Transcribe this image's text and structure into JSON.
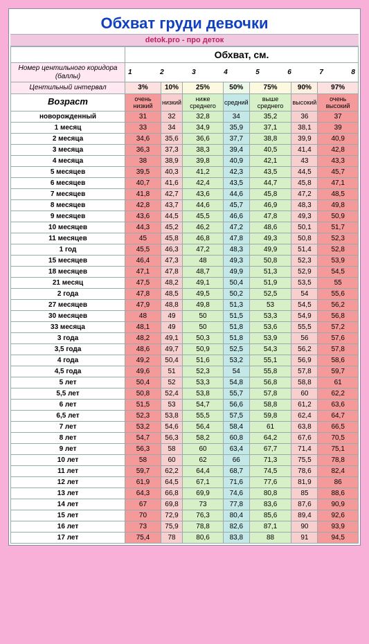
{
  "title": "Обхват груди девочки",
  "subtitle": "detok.pro - про деток",
  "main_header": "Обхват, см.",
  "corridor_label": "Номер центильного коридора (баллы)",
  "corridors": [
    "1",
    "2",
    "3",
    "4",
    "5",
    "6",
    "7",
    "8"
  ],
  "interval_label": "Центильный интервал",
  "percents": [
    "3%",
    "10%",
    "25%",
    "50%",
    "75%",
    "90%",
    "97%"
  ],
  "age_label": "Возраст",
  "categories": [
    "очень низкий",
    "низкий",
    "ниже среднего",
    "средний",
    "выше среднего",
    "высокий",
    "очень высокий"
  ],
  "colors": {
    "page_bg": "#f8b0d8",
    "col1": "#f49a9a",
    "col2": "#f8cfcf",
    "col3": "#d8f0c8",
    "col4": "#c4e8e8",
    "col5": "#d8f0c8",
    "col6": "#f8cfcf",
    "col7": "#f49a9a"
  },
  "rows": [
    {
      "age": "новорожденный",
      "v": [
        "31",
        "32",
        "32,8",
        "34",
        "35,2",
        "36",
        "37"
      ]
    },
    {
      "age": "1 месяц",
      "v": [
        "33",
        "34",
        "34,9",
        "35,9",
        "37,1",
        "38,1",
        "39"
      ]
    },
    {
      "age": "2 месяца",
      "v": [
        "34,6",
        "35,6",
        "36,6",
        "37,7",
        "38,8",
        "39,9",
        "40,9"
      ]
    },
    {
      "age": "3 месяца",
      "v": [
        "36,3",
        "37,3",
        "38,3",
        "39,4",
        "40,5",
        "41,4",
        "42,8"
      ]
    },
    {
      "age": "4 месяца",
      "v": [
        "38",
        "38,9",
        "39,8",
        "40,9",
        "42,1",
        "43",
        "43,3"
      ]
    },
    {
      "age": "5 месяцев",
      "v": [
        "39,5",
        "40,3",
        "41,2",
        "42,3",
        "43,5",
        "44,5",
        "45,7"
      ]
    },
    {
      "age": "6 месяцев",
      "v": [
        "40,7",
        "41,6",
        "42,4",
        "43,5",
        "44,7",
        "45,8",
        "47,1"
      ]
    },
    {
      "age": "7 месяцев",
      "v": [
        "41,8",
        "42,7",
        "43,6",
        "44,6",
        "45,8",
        "47,2",
        "48,5"
      ]
    },
    {
      "age": "8 месяцев",
      "v": [
        "42,8",
        "43,7",
        "44,6",
        "45,7",
        "46,9",
        "48,3",
        "49,8"
      ]
    },
    {
      "age": "9 месяцев",
      "v": [
        "43,6",
        "44,5",
        "45,5",
        "46,6",
        "47,8",
        "49,3",
        "50,9"
      ]
    },
    {
      "age": "10 месяцев",
      "v": [
        "44,3",
        "45,2",
        "46,2",
        "47,2",
        "48,6",
        "50,1",
        "51,7"
      ]
    },
    {
      "age": "11 месяцев",
      "v": [
        "45",
        "45,8",
        "46,8",
        "47,8",
        "49,3",
        "50,8",
        "52,3"
      ]
    },
    {
      "age": "1 год",
      "v": [
        "45,5",
        "46,3",
        "47,2",
        "48,3",
        "49,9",
        "51,4",
        "52,8"
      ]
    },
    {
      "age": "15 месяцев",
      "v": [
        "46,4",
        "47,3",
        "48",
        "49,3",
        "50,8",
        "52,3",
        "53,9"
      ]
    },
    {
      "age": "18 месяцев",
      "v": [
        "47,1",
        "47,8",
        "48,7",
        "49,9",
        "51,3",
        "52,9",
        "54,5"
      ]
    },
    {
      "age": "21 месяц",
      "v": [
        "47,5",
        "48,2",
        "49,1",
        "50,4",
        "51,9",
        "53,5",
        "55"
      ]
    },
    {
      "age": "2 года",
      "v": [
        "47,8",
        "48,5",
        "49,5",
        "50,2",
        "52,5",
        "54",
        "55,6"
      ]
    },
    {
      "age": "27 месяцев",
      "v": [
        "47,9",
        "48,8",
        "49,8",
        "51,3",
        "53",
        "54,5",
        "56,2"
      ]
    },
    {
      "age": "30 месяцев",
      "v": [
        "48",
        "49",
        "50",
        "51,5",
        "53,3",
        "54,9",
        "56,8"
      ]
    },
    {
      "age": "33 месяца",
      "v": [
        "48,1",
        "49",
        "50",
        "51,8",
        "53,6",
        "55,5",
        "57,2"
      ]
    },
    {
      "age": "3 года",
      "v": [
        "48,2",
        "49,1",
        "50,3",
        "51,8",
        "53,9",
        "56",
        "57,6"
      ]
    },
    {
      "age": "3,5 года",
      "v": [
        "48,6",
        "49,7",
        "50,9",
        "52,5",
        "54,3",
        "56,2",
        "57,8"
      ]
    },
    {
      "age": "4 года",
      "v": [
        "49,2",
        "50,4",
        "51,6",
        "53,2",
        "55,1",
        "56,9",
        "58,6"
      ]
    },
    {
      "age": "4,5 года",
      "v": [
        "49,6",
        "51",
        "52,3",
        "54",
        "55,8",
        "57,8",
        "59,7"
      ]
    },
    {
      "age": "5 лет",
      "v": [
        "50,4",
        "52",
        "53,3",
        "54,8",
        "56,8",
        "58,8",
        "61"
      ]
    },
    {
      "age": "5,5 лет",
      "v": [
        "50,8",
        "52,4",
        "53,8",
        "55,7",
        "57,8",
        "60",
        "62,2"
      ]
    },
    {
      "age": "6 лет",
      "v": [
        "51,5",
        "53",
        "54,7",
        "56,6",
        "58,8",
        "61,2",
        "63,6"
      ]
    },
    {
      "age": "6,5 лет",
      "v": [
        "52,3",
        "53,8",
        "55,5",
        "57,5",
        "59,8",
        "62,4",
        "64,7"
      ]
    },
    {
      "age": "7 лет",
      "v": [
        "53,2",
        "54,6",
        "56,4",
        "58,4",
        "61",
        "63,8",
        "66,5"
      ]
    },
    {
      "age": "8 лет",
      "v": [
        "54,7",
        "56,3",
        "58,2",
        "60,8",
        "64,2",
        "67,6",
        "70,5"
      ]
    },
    {
      "age": "9 лет",
      "v": [
        "56,3",
        "58",
        "60",
        "63,4",
        "67,7",
        "71,4",
        "75,1"
      ]
    },
    {
      "age": "10 лет",
      "v": [
        "58",
        "60",
        "62",
        "66",
        "71,3",
        "75,5",
        "78,8"
      ]
    },
    {
      "age": "11 лет",
      "v": [
        "59,7",
        "62,2",
        "64,4",
        "68,7",
        "74,5",
        "78,6",
        "82,4"
      ]
    },
    {
      "age": "12 лет",
      "v": [
        "61,9",
        "64,5",
        "67,1",
        "71,6",
        "77,6",
        "81,9",
        "86"
      ]
    },
    {
      "age": "13 лет",
      "v": [
        "64,3",
        "66,8",
        "69,9",
        "74,6",
        "80,8",
        "85",
        "88,6"
      ]
    },
    {
      "age": "14 лет",
      "v": [
        "67",
        "69,8",
        "73",
        "77,8",
        "83,6",
        "87,6",
        "90,9"
      ]
    },
    {
      "age": "15 лет",
      "v": [
        "70",
        "72,9",
        "76,3",
        "80,4",
        "85,6",
        "89,4",
        "92,6"
      ]
    },
    {
      "age": "16 лет",
      "v": [
        "73",
        "75,9",
        "78,8",
        "82,6",
        "87,1",
        "90",
        "93,9"
      ]
    },
    {
      "age": "17 лет",
      "v": [
        "75,4",
        "78",
        "80,6",
        "83,8",
        "88",
        "91",
        "94,5"
      ]
    }
  ]
}
